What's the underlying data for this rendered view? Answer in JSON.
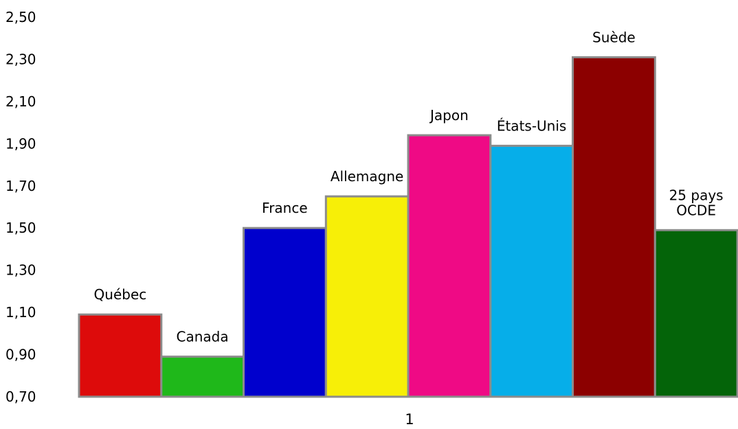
{
  "chart_data": {
    "type": "bar",
    "x_category": "1",
    "ylim": [
      0.7,
      2.5
    ],
    "ytick_labels": [
      "0,70",
      "0,90",
      "1,10",
      "1,30",
      "1,50",
      "1,70",
      "1,90",
      "2,10",
      "2,30",
      "2,50"
    ],
    "ytick_values": [
      0.7,
      0.9,
      1.1,
      1.3,
      1.5,
      1.7,
      1.9,
      2.1,
      2.3,
      2.5
    ],
    "grid": false,
    "legend": "none",
    "series": [
      {
        "label_lines": [
          "Québec"
        ],
        "value": 1.09,
        "color": "#dd0b0b"
      },
      {
        "label_lines": [
          "Canada"
        ],
        "value": 0.89,
        "color": "#1fb81a"
      },
      {
        "label_lines": [
          "France"
        ],
        "value": 1.5,
        "color": "#0000cd"
      },
      {
        "label_lines": [
          "Allemagne"
        ],
        "value": 1.65,
        "color": "#f7ef07"
      },
      {
        "label_lines": [
          "Japon"
        ],
        "value": 1.94,
        "color": "#ef0a85"
      },
      {
        "label_lines": [
          "États-Unis"
        ],
        "value": 1.89,
        "color": "#06aee9"
      },
      {
        "label_lines": [
          "Suède"
        ],
        "value": 2.31,
        "color": "#8c0000"
      },
      {
        "label_lines": [
          "25 pays",
          "OCDE"
        ],
        "value": 1.49,
        "color": "#046409"
      }
    ]
  }
}
